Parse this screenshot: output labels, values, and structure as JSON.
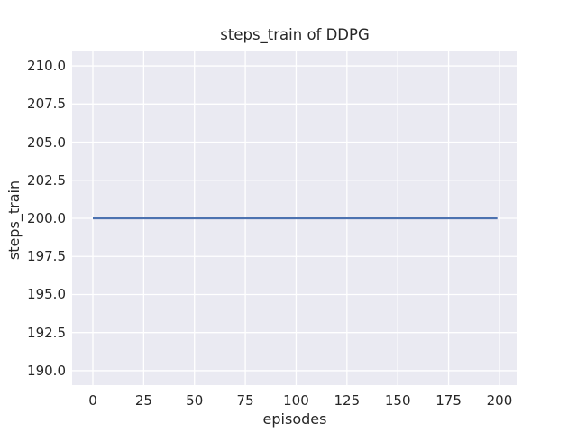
{
  "chart_data": {
    "type": "line",
    "title": "steps_train of DDPG",
    "xlabel": "episodes",
    "ylabel": "steps_train",
    "xlim": [
      -10.2,
      208.9
    ],
    "ylim": [
      189.05,
      210.95
    ],
    "xticks": {
      "values": [
        0,
        25,
        50,
        75,
        100,
        125,
        150,
        175,
        200
      ],
      "labels": [
        "0",
        "25",
        "50",
        "75",
        "100",
        "125",
        "150",
        "175",
        "200"
      ]
    },
    "yticks": {
      "values": [
        190,
        192.5,
        195,
        197.5,
        200,
        202.5,
        205,
        207.5,
        210
      ],
      "labels": [
        "190.0",
        "192.5",
        "195.0",
        "197.5",
        "200.0",
        "202.5",
        "205.0",
        "207.5",
        "210.0"
      ]
    },
    "grid": true,
    "legend": "none",
    "series": [
      {
        "name": "steps_train",
        "color": "#4c72b0",
        "x_start": 0,
        "x_end": 199,
        "y_value": 200,
        "description": "constant line: steps_train = 200 for every episode from 0 to 199"
      }
    ],
    "style": {
      "figure_bg": "#ffffff",
      "plot_bg": "#eaeaf2",
      "grid_color": "#ffffff",
      "text_color": "#262626",
      "line_color": "#4c72b0"
    }
  }
}
